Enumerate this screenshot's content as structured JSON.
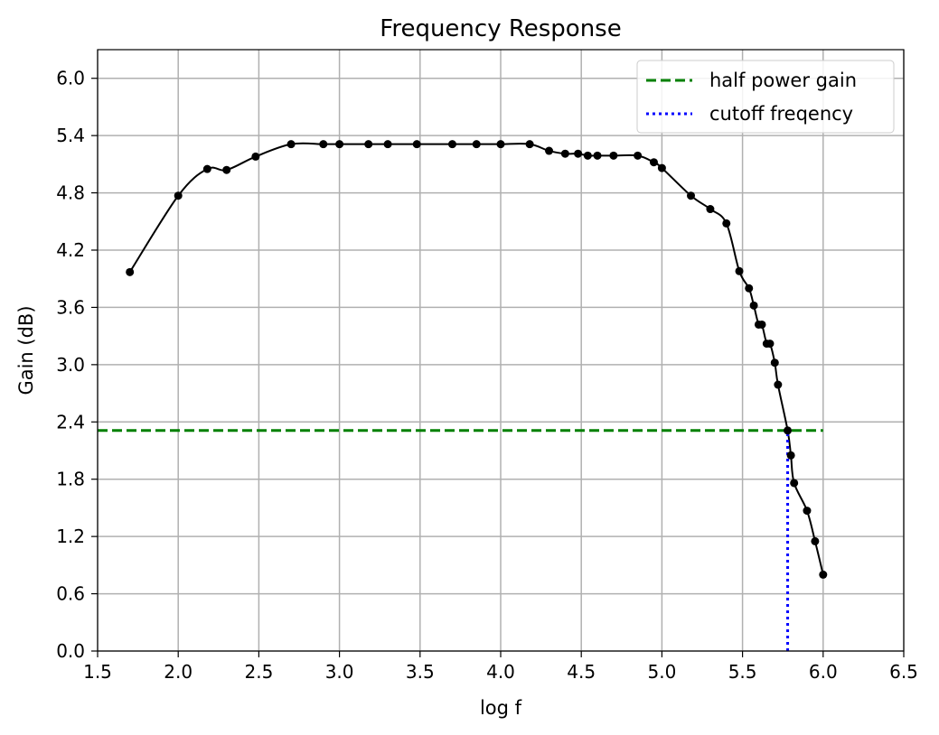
{
  "chart_data": {
    "type": "line",
    "title": "Frequency Response",
    "xlabel": "log f",
    "ylabel": "Gain (dB)",
    "xlim": [
      1.5,
      6.5
    ],
    "ylim": [
      0.0,
      6.3
    ],
    "x_ticks": [
      1.5,
      2.0,
      2.5,
      3.0,
      3.5,
      4.0,
      4.5,
      5.0,
      5.5,
      6.0,
      6.5
    ],
    "x_tick_labels": [
      "1.5",
      "2.0",
      "2.5",
      "3.0",
      "3.5",
      "4.0",
      "4.5",
      "5.0",
      "5.5",
      "6.0",
      "6.5"
    ],
    "y_ticks": [
      0.0,
      0.6,
      1.2,
      1.8,
      2.4,
      3.0,
      3.6,
      4.2,
      4.8,
      5.4,
      6.0
    ],
    "y_tick_labels": [
      "0.0",
      "0.6",
      "1.2",
      "1.8",
      "2.4",
      "3.0",
      "3.6",
      "4.2",
      "4.8",
      "5.4",
      "6.0"
    ],
    "grid": true,
    "legend_position": "top-right",
    "series": [
      {
        "color": "#000000",
        "style": "solid-with-markers",
        "x": [
          1.7,
          2.0,
          2.18,
          2.3,
          2.48,
          2.7,
          2.9,
          3.0,
          3.18,
          3.3,
          3.48,
          3.7,
          3.85,
          4.0,
          4.18,
          4.3,
          4.4,
          4.48,
          4.54,
          4.6,
          4.7,
          4.85,
          4.95,
          5.0,
          5.18,
          5.3,
          5.4,
          5.48,
          5.54,
          5.57,
          5.6,
          5.62,
          5.65,
          5.67,
          5.7,
          5.72,
          5.78,
          5.8,
          5.82,
          5.9,
          5.95,
          6.0
        ],
        "y": [
          3.97,
          4.77,
          5.05,
          5.04,
          5.18,
          5.31,
          5.31,
          5.31,
          5.31,
          5.31,
          5.31,
          5.31,
          5.31,
          5.31,
          5.31,
          5.24,
          5.21,
          5.21,
          5.19,
          5.19,
          5.19,
          5.19,
          5.12,
          5.06,
          4.77,
          4.63,
          4.48,
          3.98,
          3.8,
          3.62,
          3.42,
          3.42,
          3.22,
          3.22,
          3.02,
          2.79,
          2.31,
          2.05,
          1.76,
          1.47,
          1.15,
          0.8
        ]
      },
      {
        "name": "half power gain",
        "color": "#008000",
        "style": "dashed",
        "x": [
          1.5,
          6.0
        ],
        "y": [
          2.31,
          2.31
        ]
      },
      {
        "name": "cutoff freqency",
        "color": "#0000ff",
        "style": "dotted",
        "x": [
          5.78,
          5.78
        ],
        "y": [
          0.0,
          2.31
        ]
      }
    ]
  }
}
